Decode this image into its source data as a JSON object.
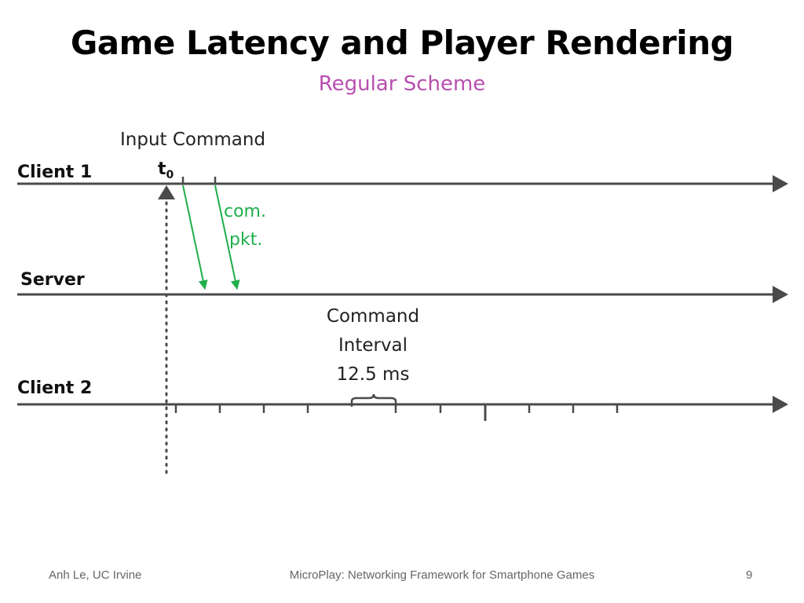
{
  "slide": {
    "title": "Game Latency and Player Rendering",
    "subtitle": "Regular Scheme"
  },
  "diagram": {
    "lanes": [
      {
        "label": "Client 1"
      },
      {
        "label": "Server"
      },
      {
        "label": "Client 2"
      }
    ],
    "input_command_label": "Input Command",
    "t0_label": "t",
    "t0_subscript": "0",
    "packet_label_line1": "com.",
    "packet_label_line2": "pkt.",
    "interval_label_line1": "Command",
    "interval_label_line2": "Interval",
    "interval_label_line3": "12.5 ms",
    "colors": {
      "timeline": "#4a4a4a",
      "packet": "#1fae4a",
      "subtitle": "#b74fb0"
    }
  },
  "footer": {
    "author": "Anh Le, UC Irvine",
    "talk_title": "MicroPlay: Networking Framework for Smartphone Games",
    "page_number": "9"
  }
}
